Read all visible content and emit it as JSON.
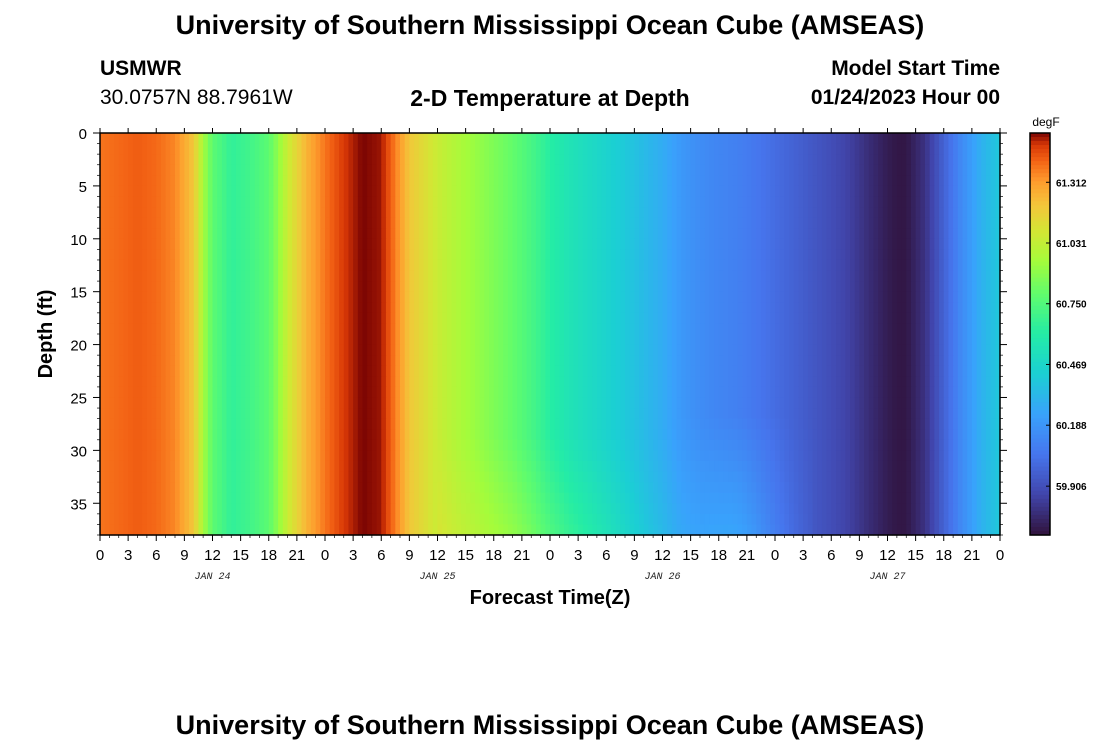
{
  "header": {
    "title": "University of Southern Mississippi Ocean Cube (AMSEAS)",
    "station_id": "USMWR",
    "station_coords": "30.0757N  88.7961W",
    "plot_title": "2-D Temperature at Depth",
    "model_start_label": "Model Start Time",
    "model_start_value": "01/24/2023 Hour 00"
  },
  "footer": {
    "title": "University of Southern Mississippi Ocean Cube (AMSEAS)"
  },
  "chart_data": {
    "type": "heatmap",
    "xlabel": "Forecast Time(Z)",
    "ylabel": "Depth (ft)",
    "x_range_hours": [
      0,
      96
    ],
    "ylim": [
      0,
      38
    ],
    "y_inverted": true,
    "x_tick_labels": [
      "0",
      "3",
      "6",
      "9",
      "12",
      "15",
      "18",
      "21",
      "0",
      "3",
      "6",
      "9",
      "12",
      "15",
      "18",
      "21",
      "0",
      "3",
      "6",
      "9",
      "12",
      "15",
      "18",
      "21",
      "0",
      "3",
      "6",
      "9",
      "12",
      "15",
      "18",
      "21",
      "0"
    ],
    "y_tick_labels": [
      "0",
      "5",
      "10",
      "15",
      "20",
      "25",
      "30",
      "35"
    ],
    "y_tick_values": [
      0,
      5,
      10,
      15,
      20,
      25,
      30,
      35
    ],
    "date_labels": [
      {
        "label": "JAN 24",
        "hour": 12
      },
      {
        "label": "JAN 25",
        "hour": 36
      },
      {
        "label": "JAN 26",
        "hour": 60
      },
      {
        "label": "JAN 27",
        "hour": 84
      }
    ],
    "colorbar": {
      "unit": "degF",
      "vmin": 59.68,
      "vmax": 61.54,
      "tick_labels": [
        "61.312",
        "61.031",
        "60.750",
        "60.469",
        "60.188",
        "59.906"
      ],
      "tick_values": [
        61.312,
        61.031,
        60.75,
        60.469,
        60.188,
        59.906
      ]
    },
    "surface_temperature_series": {
      "hours": [
        0,
        2,
        4,
        6,
        8,
        10,
        11,
        12,
        13,
        14,
        16,
        18,
        19,
        20,
        22,
        24,
        26,
        28,
        30,
        31,
        33,
        36,
        38,
        40,
        42,
        44,
        46,
        48,
        50,
        52,
        54,
        56,
        58,
        60,
        62,
        64,
        66,
        68,
        70,
        72,
        74,
        76,
        78,
        80,
        82,
        84,
        85,
        86,
        88,
        90,
        92,
        94,
        96
      ],
      "values": [
        61.38,
        61.4,
        61.42,
        61.4,
        61.35,
        61.2,
        60.95,
        60.78,
        60.72,
        60.65,
        60.7,
        60.78,
        60.9,
        61.05,
        61.25,
        61.38,
        61.48,
        61.54,
        61.52,
        61.42,
        61.2,
        61.05,
        60.98,
        60.92,
        60.86,
        60.8,
        60.72,
        60.62,
        60.55,
        60.5,
        60.45,
        60.4,
        60.34,
        60.28,
        60.2,
        60.15,
        60.12,
        60.1,
        60.06,
        60.02,
        59.98,
        59.94,
        59.9,
        59.85,
        59.78,
        59.72,
        59.7,
        59.7,
        59.8,
        59.98,
        60.15,
        60.3,
        60.4
      ]
    }
  }
}
